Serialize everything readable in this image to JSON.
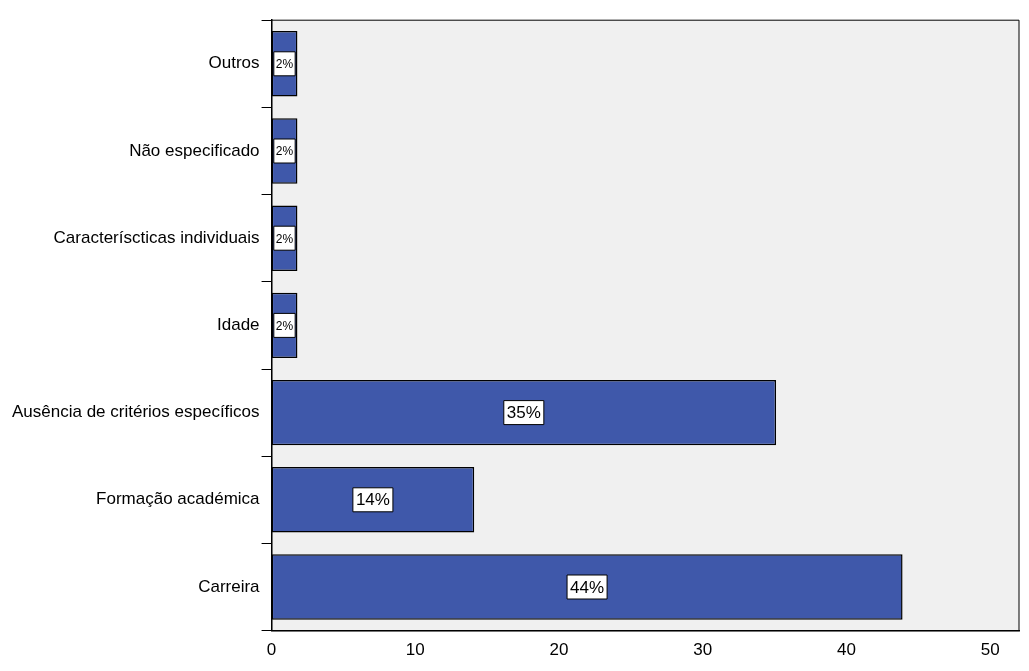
{
  "chart_data": {
    "type": "bar",
    "orientation": "horizontal",
    "categories": [
      "Outros",
      "Não especificado",
      "Caracteríscticas individuais",
      "Idade",
      "Ausência de critérios específicos",
      "Formação académica",
      "Carreira"
    ],
    "values": [
      1.8,
      1.8,
      1.8,
      1.8,
      35.1,
      14.1,
      43.9
    ],
    "value_labels": [
      "2%",
      "2%",
      "2%",
      "2%",
      "35%",
      "14%",
      "44%"
    ],
    "color": "#3f58aa",
    "xlim": [
      0,
      52
    ],
    "xticks": [
      0,
      10,
      20,
      30,
      40,
      50
    ],
    "grid": false,
    "legend": false
  }
}
